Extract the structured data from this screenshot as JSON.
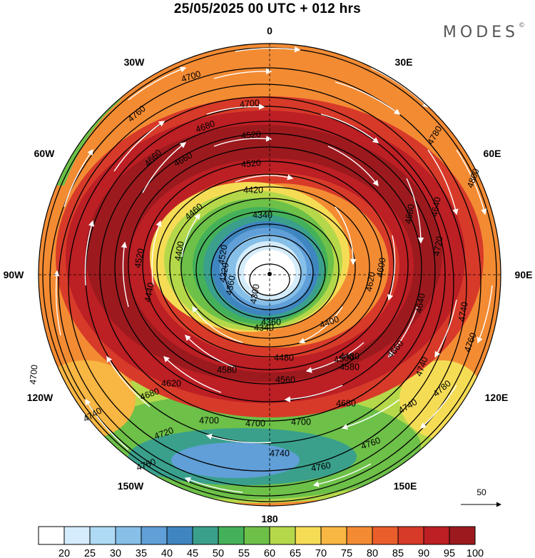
{
  "title": "25/05/2025  00 UTC  + 012 hrs",
  "logo": "MODES",
  "logo_mark": "©",
  "longitude_labels": {
    "top": "0",
    "bottom": "180",
    "w30": "30W",
    "e30": "30E",
    "w60": "60W",
    "e60": "60E",
    "w90": "90W",
    "e90": "90E",
    "w120": "120W",
    "e120": "120E",
    "w150": "150W",
    "e150": "150E"
  },
  "contour_labels": [
    "4700",
    "4760",
    "4680",
    "4700",
    "4520",
    "4660",
    "4660",
    "4520",
    "4420",
    "4460",
    "4340",
    "4520",
    "4400",
    "4320",
    "4300",
    "4360",
    "4440",
    "4340",
    "4400",
    "4520",
    "4500",
    "4480",
    "4560",
    "4580",
    "4620",
    "4660",
    "4680",
    "4700",
    "4700",
    "4700",
    "4740",
    "4720",
    "4740",
    "4760",
    "4760",
    "4760",
    "4740",
    "4780",
    "4740",
    "4760",
    "4800",
    "4780",
    "4680",
    "4680",
    "4640",
    "4720",
    "4600",
    "4640",
    "4620",
    "4740",
    "4700",
    "4360",
    "4480",
    "4580"
  ],
  "wind_reference": {
    "value": "50"
  },
  "colorbar": {
    "ticks": [
      "20",
      "25",
      "30",
      "35",
      "40",
      "45",
      "50",
      "55",
      "60",
      "65",
      "70",
      "75",
      "80",
      "85",
      "90",
      "95",
      "100"
    ],
    "colors": [
      "#ffffff",
      "#d4ecfb",
      "#aedaf5",
      "#86bfe8",
      "#609fd8",
      "#3f86c0",
      "#3aa08c",
      "#44b15a",
      "#6dc048",
      "#b5d84a",
      "#f5dc55",
      "#f8b643",
      "#f38b33",
      "#ea5e2b",
      "#d73a29",
      "#bc1f24",
      "#9c1a1e"
    ]
  },
  "wind_speed_colors": {
    "lt20": "#ffffff",
    "20_25": "#d4ecfb",
    "25_30": "#aedaf5",
    "30_35": "#86bfe8",
    "35_40": "#609fd8",
    "40_45": "#3f86c0",
    "45_50": "#3aa08c",
    "50_55": "#44b15a",
    "55_60": "#6dc048",
    "60_65": "#b5d84a",
    "65_70": "#f5dc55",
    "70_75": "#f8b643",
    "75_80": "#f38b33",
    "80_85": "#ea5e2b",
    "85_90": "#d73a29",
    "90_95": "#bc1f24",
    "gt95": "#9c1a1e"
  }
}
